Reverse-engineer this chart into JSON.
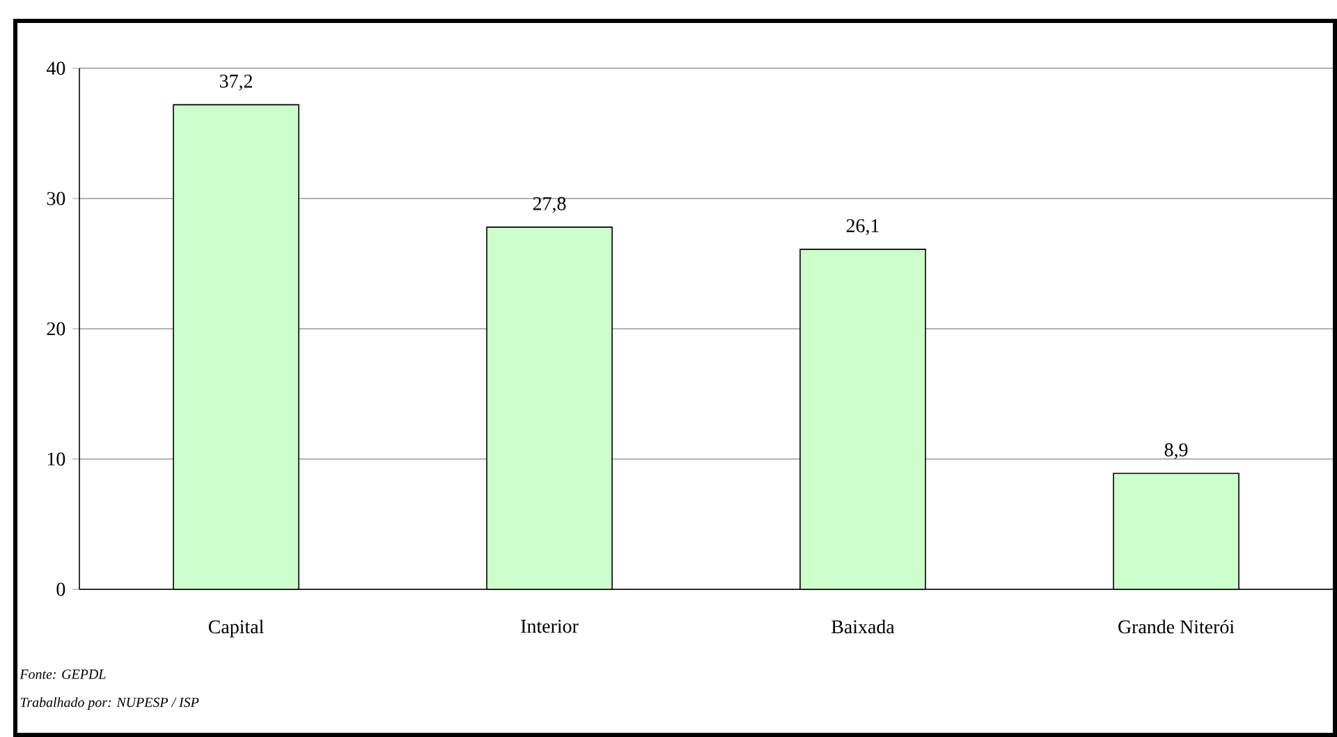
{
  "chart_data": {
    "type": "bar",
    "categories": [
      "Capital",
      "Interior",
      "Baixada",
      "Grande Niterói"
    ],
    "values": [
      37.2,
      27.8,
      26.1,
      8.9
    ],
    "value_labels": [
      "37,2",
      "27,8",
      "26,1",
      "8,9"
    ],
    "color": "#ccffcc",
    "ylim": [
      0,
      40
    ],
    "yticks": [
      0,
      10,
      20,
      30,
      40
    ],
    "grid": "y",
    "annotations": [
      "Fonte: GEPDL",
      "Trabalhado por: NUPESP / ISP"
    ]
  }
}
